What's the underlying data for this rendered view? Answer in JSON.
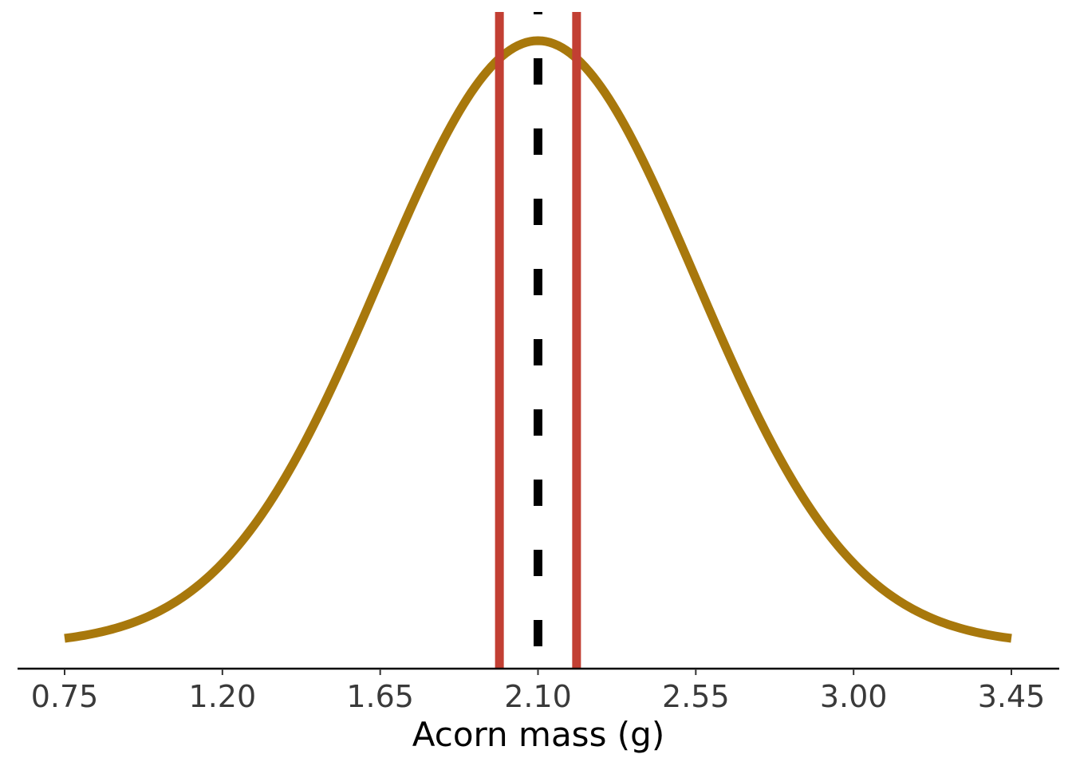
{
  "chart_data": {
    "type": "line",
    "xlabel": "Acorn mass (g)",
    "ylabel": "",
    "title": "",
    "xlim": [
      0.75,
      3.45
    ],
    "x_ticks": [
      0.75,
      1.2,
      1.65,
      2.1,
      2.55,
      3.0,
      3.45
    ],
    "x_tick_labels": [
      "0.75",
      "1.20",
      "1.65",
      "2.10",
      "2.55",
      "3.00",
      "3.45"
    ],
    "y_axis_visible": false,
    "grid": false,
    "series": [
      {
        "kind": "normal-density",
        "mean": 2.1,
        "sd": 0.45,
        "x_range": [
          0.75,
          3.45
        ],
        "color": "#a8780c"
      }
    ],
    "reference_lines": [
      {
        "kind": "dashed-vertical",
        "x": 2.1,
        "color": "#000000"
      },
      {
        "kind": "solid-vertical",
        "x": 1.99,
        "color": "#c23f33"
      },
      {
        "kind": "solid-vertical",
        "x": 2.21,
        "color": "#c23f33"
      }
    ]
  }
}
